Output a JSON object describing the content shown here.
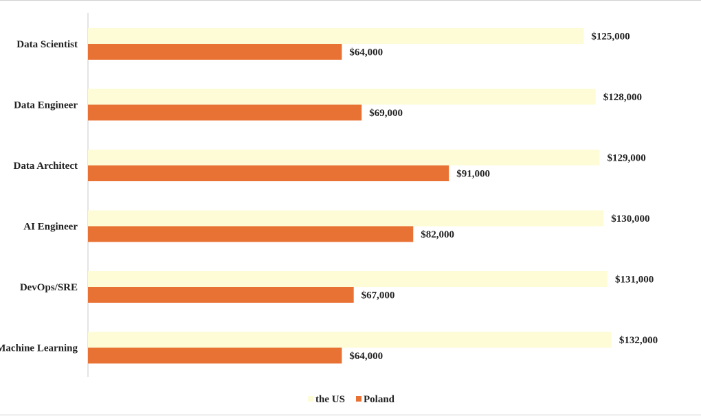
{
  "chart_data": {
    "type": "bar",
    "orientation": "horizontal",
    "categories": [
      "Data Scientist",
      "Data Engineer",
      "Data Architect",
      "AI Engineer",
      "DevOps/SRE",
      "Machine Learning"
    ],
    "series": [
      {
        "name": "the US",
        "color": "#fdfcd6",
        "values": [
          125000,
          128000,
          129000,
          130000,
          131000,
          132000
        ],
        "labels": [
          "$125,000",
          "$128,000",
          "$129,000",
          "$130,000",
          "$131,000",
          "$132,000"
        ]
      },
      {
        "name": "Poland",
        "color": "#e87134",
        "values": [
          64000,
          69000,
          91000,
          82000,
          67000,
          64000
        ],
        "labels": [
          "$64,000",
          "$69,000",
          "$91,000",
          "$82,000",
          "$67,000",
          "$64,000"
        ]
      }
    ],
    "xlim": [
      0,
      140000
    ],
    "grid": false,
    "legend_position": "bottom"
  }
}
